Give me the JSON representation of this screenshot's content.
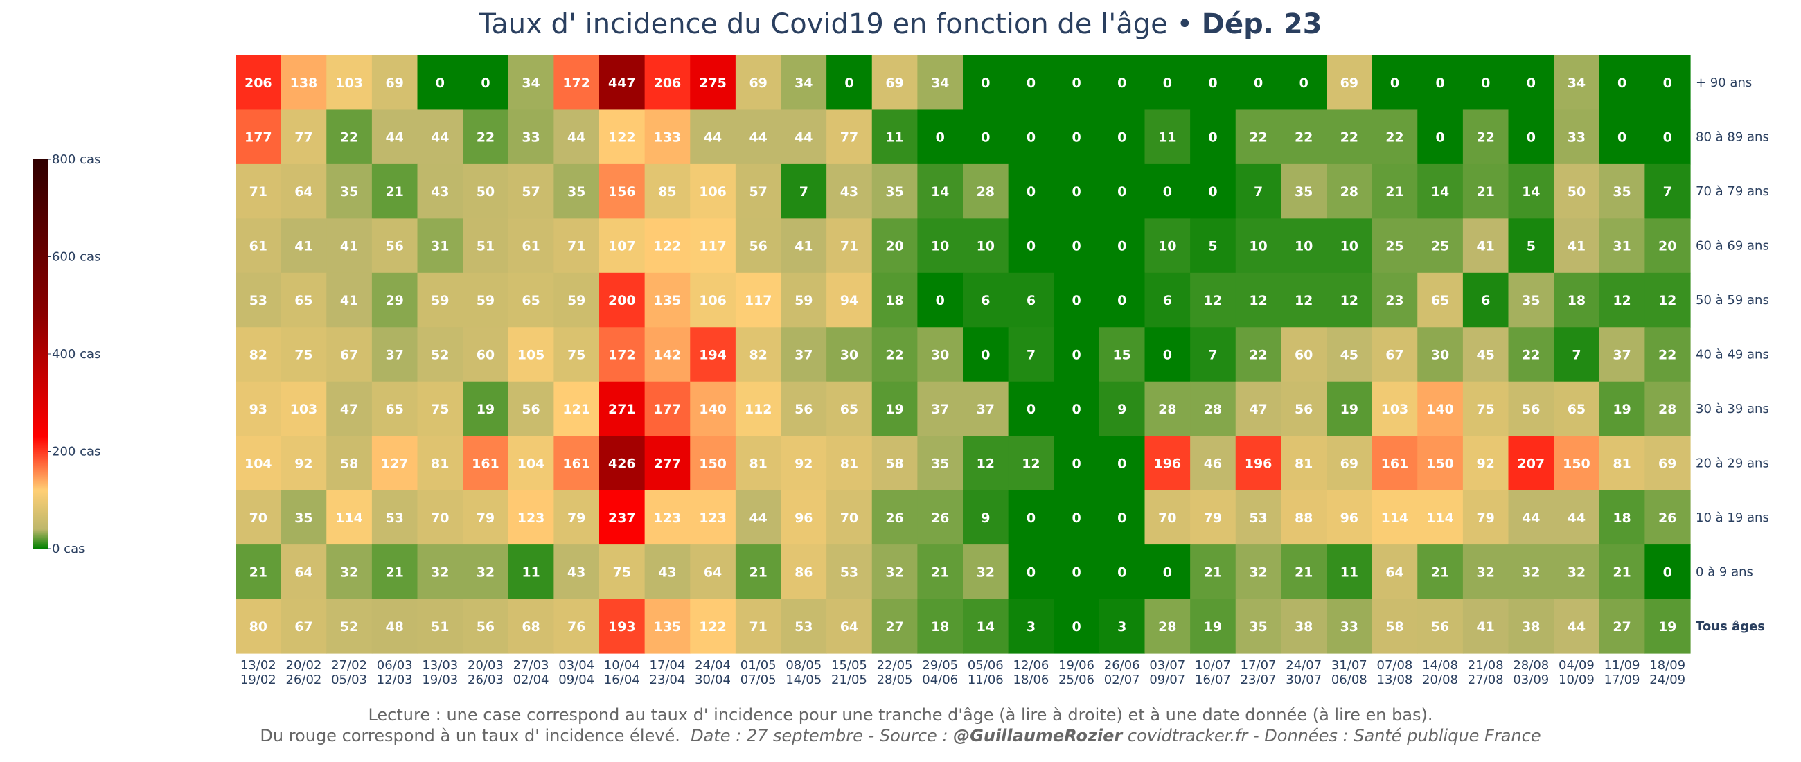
{
  "title": {
    "main": "Taux d' incidence du Covid19 en fonction de l'âge",
    "sep": " • ",
    "dept": "Dép. 23"
  },
  "colors": {
    "green": "#008000",
    "olive": "#bdb76b",
    "peach": "#ffcf75",
    "red": "#ff0000",
    "darkred": "#8b0000",
    "darkest": "#300000",
    "text": "#2a3f5f"
  },
  "chart_data": {
    "type": "heatmap",
    "title": "Taux d' incidence du Covid19 en fonction de l'âge • Dép. 23",
    "x_labels": [
      [
        "13/02",
        "19/02"
      ],
      [
        "20/02",
        "26/02"
      ],
      [
        "27/02",
        "05/03"
      ],
      [
        "06/03",
        "12/03"
      ],
      [
        "13/03",
        "19/03"
      ],
      [
        "20/03",
        "26/03"
      ],
      [
        "27/03",
        "02/04"
      ],
      [
        "03/04",
        "09/04"
      ],
      [
        "10/04",
        "16/04"
      ],
      [
        "17/04",
        "23/04"
      ],
      [
        "24/04",
        "30/04"
      ],
      [
        "01/05",
        "07/05"
      ],
      [
        "08/05",
        "14/05"
      ],
      [
        "15/05",
        "21/05"
      ],
      [
        "22/05",
        "28/05"
      ],
      [
        "29/05",
        "04/06"
      ],
      [
        "05/06",
        "11/06"
      ],
      [
        "12/06",
        "18/06"
      ],
      [
        "19/06",
        "25/06"
      ],
      [
        "26/06",
        "02/07"
      ],
      [
        "03/07",
        "09/07"
      ],
      [
        "10/07",
        "16/07"
      ],
      [
        "17/07",
        "23/07"
      ],
      [
        "24/07",
        "30/07"
      ],
      [
        "31/07",
        "06/08"
      ],
      [
        "07/08",
        "13/08"
      ],
      [
        "14/08",
        "20/08"
      ],
      [
        "21/08",
        "27/08"
      ],
      [
        "28/08",
        "03/09"
      ],
      [
        "04/09",
        "10/09"
      ],
      [
        "11/09",
        "17/09"
      ],
      [
        "18/09",
        "24/09"
      ]
    ],
    "y_labels": [
      "+ 90 ans",
      "80 à 89 ans",
      "70 à 79 ans",
      "60 à 69 ans",
      "50 à 59 ans",
      "40 à 49 ans",
      "30 à 39 ans",
      "20 à 29 ans",
      "10 à 19 ans",
      "0 à 9 ans",
      "Tous âges"
    ],
    "values": [
      [
        206,
        138,
        103,
        69,
        0,
        0,
        34,
        172,
        447,
        206,
        275,
        69,
        34,
        0,
        69,
        34,
        0,
        0,
        0,
        0,
        0,
        0,
        0,
        0,
        69,
        0,
        0,
        0,
        0,
        34,
        0,
        0
      ],
      [
        177,
        77,
        22,
        44,
        44,
        22,
        33,
        44,
        122,
        133,
        44,
        44,
        44,
        77,
        11,
        0,
        0,
        0,
        0,
        0,
        11,
        0,
        22,
        22,
        22,
        22,
        0,
        22,
        0,
        33,
        0,
        0
      ],
      [
        71,
        64,
        35,
        21,
        43,
        50,
        57,
        35,
        156,
        85,
        106,
        57,
        7,
        43,
        35,
        14,
        28,
        0,
        0,
        0,
        0,
        0,
        7,
        35,
        28,
        21,
        14,
        21,
        14,
        50,
        35,
        7
      ],
      [
        61,
        41,
        41,
        56,
        31,
        51,
        61,
        71,
        107,
        122,
        117,
        56,
        41,
        71,
        20,
        10,
        10,
        0,
        0,
        0,
        10,
        5,
        10,
        10,
        10,
        25,
        25,
        41,
        5,
        41,
        31,
        20
      ],
      [
        53,
        65,
        41,
        29,
        59,
        59,
        65,
        59,
        200,
        135,
        106,
        117,
        59,
        94,
        18,
        0,
        6,
        6,
        0,
        0,
        6,
        12,
        12,
        12,
        12,
        23,
        65,
        6,
        35,
        18,
        12,
        12
      ],
      [
        82,
        75,
        67,
        37,
        52,
        60,
        105,
        75,
        172,
        142,
        194,
        82,
        37,
        30,
        22,
        30,
        0,
        7,
        0,
        15,
        0,
        7,
        22,
        60,
        45,
        67,
        30,
        45,
        22,
        7,
        37,
        22
      ],
      [
        93,
        103,
        47,
        65,
        75,
        19,
        56,
        121,
        271,
        177,
        140,
        112,
        56,
        65,
        19,
        37,
        37,
        0,
        0,
        9,
        28,
        28,
        47,
        56,
        19,
        103,
        140,
        75,
        56,
        65,
        19,
        28
      ],
      [
        104,
        92,
        58,
        127,
        81,
        161,
        104,
        161,
        426,
        277,
        150,
        81,
        92,
        81,
        58,
        35,
        12,
        12,
        0,
        0,
        196,
        46,
        196,
        81,
        69,
        161,
        150,
        92,
        207,
        150,
        81,
        69
      ],
      [
        70,
        35,
        114,
        53,
        70,
        79,
        123,
        79,
        237,
        123,
        123,
        44,
        96,
        70,
        26,
        26,
        9,
        0,
        0,
        0,
        70,
        79,
        53,
        88,
        96,
        114,
        114,
        79,
        44,
        44,
        18,
        26
      ],
      [
        21,
        64,
        32,
        21,
        32,
        32,
        11,
        43,
        75,
        43,
        64,
        21,
        86,
        53,
        32,
        21,
        32,
        0,
        0,
        0,
        0,
        21,
        32,
        21,
        11,
        64,
        21,
        32,
        32,
        32,
        21,
        0
      ],
      [
        80,
        67,
        52,
        48,
        51,
        56,
        68,
        76,
        193,
        135,
        122,
        71,
        53,
        64,
        27,
        18,
        14,
        3,
        0,
        3,
        28,
        19,
        35,
        38,
        33,
        58,
        56,
        41,
        38,
        44,
        27,
        19
      ]
    ],
    "colorbar": {
      "min": 0,
      "max": 800,
      "ticks": [
        "0 cas",
        "200 cas",
        "400 cas",
        "600 cas",
        "800 cas"
      ]
    }
  },
  "caption": {
    "line1": "Lecture : une case correspond au taux d' incidence pour une tranche d'âge (à lire à droite) et à une date donnée (à lire en bas).",
    "line2a": "Du rouge correspond à un taux d' incidence élevé.",
    "line2b": "Date : 27 septembre - Source :",
    "line2c": "@GuillaumeRozier",
    "line2d": "covidtracker.fr - Données : Santé publique France"
  }
}
